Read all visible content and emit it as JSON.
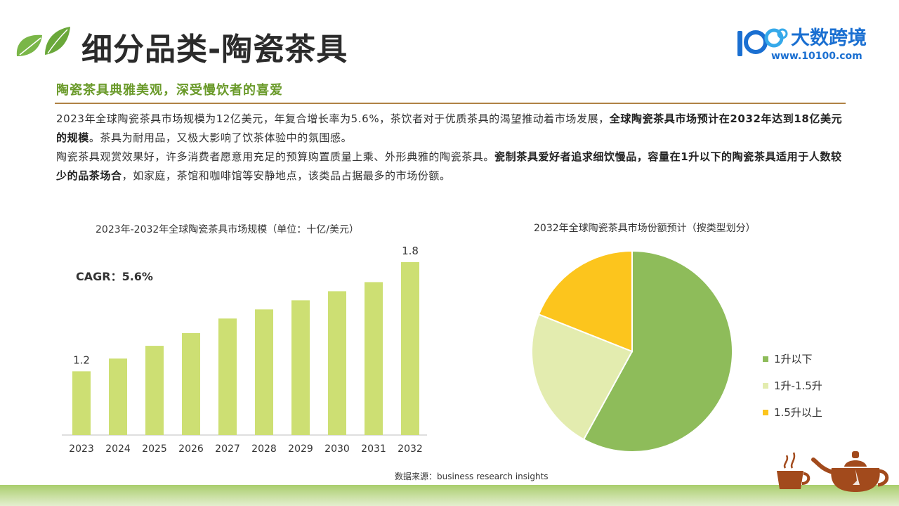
{
  "header": {
    "title": "细分品类-陶瓷茶具",
    "subtitle": "陶瓷茶具典雅美观，深受慢饮者的喜爱",
    "brand_name": "大数跨境",
    "brand_url": "www.10100.com",
    "leaf_icon": "leaf-icon",
    "brand_icon": "brand-logo-icon"
  },
  "body": {
    "p1_a": "2023年全球陶瓷茶具市场规模为12亿美元，年复合增长率为5.6%，茶饮者对于优质茶具的渴望推动着市场发展，",
    "p1_b": "全球陶瓷茶具市场预计在2032年达到18亿美元的规模",
    "p1_c": "。茶具为耐用品，又极大影响了饮茶体验中的氛围感。",
    "p2_a": "陶瓷茶具观赏效果好，许多消费者愿意用充足的预算购置质量上乘、外形典雅的陶瓷茶具。",
    "p2_b": "瓷制茶具爱好者追求细饮慢品，容量在1升以下的陶瓷茶具适用于人数较少的品茶场合",
    "p2_c": "，如家庭，茶馆和咖啡馆等安静地点，该类品占据最多的市场份额。"
  },
  "cagr_label": "CAGR：5.6%",
  "source": "数据来源：business research insights",
  "colors": {
    "bar": "#cddf73",
    "pie_1": "#8ebc5a",
    "pie_2": "#e3ecaf",
    "pie_3": "#fcc51d",
    "accent_green": "#6a9a2a",
    "divider": "#b08244",
    "brand_blue": "#1a6fd1"
  },
  "decor": {
    "teaware_icon": "teapot-and-cup-icon"
  },
  "chart_data": [
    {
      "type": "bar",
      "title": "2023年-2032年全球陶瓷茶具市场规模（单位：十亿/美元）",
      "categories": [
        "2023",
        "2024",
        "2025",
        "2026",
        "2027",
        "2028",
        "2029",
        "2030",
        "2031",
        "2032"
      ],
      "values": [
        1.2,
        1.27,
        1.34,
        1.41,
        1.49,
        1.54,
        1.59,
        1.64,
        1.69,
        1.8
      ],
      "data_labels": [
        {
          "category": "2023",
          "text": "1.2"
        },
        {
          "category": "2032",
          "text": "1.8"
        }
      ],
      "ylim": [
        0.85,
        1.85
      ],
      "grid": false,
      "legend": "none"
    },
    {
      "type": "pie",
      "title": "2032年全球陶瓷茶具市场份额预计（按类型划分）",
      "slices": [
        {
          "label": "1升以下",
          "value": 58
        },
        {
          "label": "1升-1.5升",
          "value": 23
        },
        {
          "label": "1.5升以上",
          "value": 19
        }
      ],
      "legend": "right"
    }
  ]
}
